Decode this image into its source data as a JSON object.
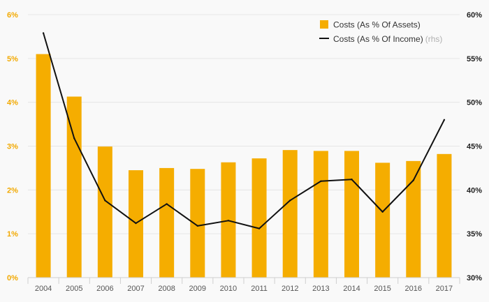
{
  "chart_data": {
    "type": "bar+line",
    "categories": [
      "2004",
      "2005",
      "2006",
      "2007",
      "2008",
      "2009",
      "2010",
      "2011",
      "2012",
      "2013",
      "2014",
      "2015",
      "2016",
      "2017"
    ],
    "series": [
      {
        "name": "Costs (As % Of Assets)",
        "type": "bar",
        "axis": "left",
        "color": "#f5ad00",
        "values": [
          5.1,
          4.13,
          2.99,
          2.45,
          2.5,
          2.48,
          2.63,
          2.72,
          2.91,
          2.89,
          2.89,
          2.62,
          2.66,
          2.82
        ]
      },
      {
        "name": "Costs (As % Of Income)",
        "suffix": "(rhs)",
        "type": "line",
        "axis": "right",
        "color": "#111111",
        "values": [
          57.9,
          45.9,
          38.8,
          36.2,
          38.4,
          35.9,
          36.5,
          35.6,
          38.8,
          41.0,
          41.2,
          37.5,
          41.1,
          48.0
        ]
      }
    ],
    "y_left": {
      "min": 0,
      "max": 6,
      "ticks": [
        "0%",
        "1%",
        "2%",
        "3%",
        "4%",
        "5%",
        "6%"
      ],
      "color": "#f2a900"
    },
    "y_right": {
      "min": 30,
      "max": 60,
      "ticks": [
        "30%",
        "35%",
        "40%",
        "45%",
        "50%",
        "55%",
        "60%"
      ],
      "color": "#222222"
    },
    "grid": true,
    "legend_position": "top-right"
  }
}
